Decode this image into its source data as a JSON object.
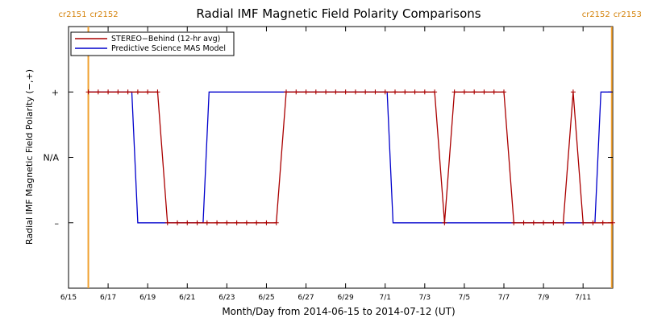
{
  "chart_data": {
    "type": "line",
    "title": "Radial IMF Magnetic Field Polarity Comparisons",
    "xlabel": "Month/Day from 2014-06-15 to 2014-07-12 (UT)",
    "ylabel": "Radial IMF Magnetic Field Polarity (−,+)",
    "x_range_days": [
      0,
      27.5
    ],
    "y_range": [
      -2,
      2
    ],
    "x_ticks": [
      {
        "day": 0,
        "label": "6/15"
      },
      {
        "day": 2,
        "label": "6/17"
      },
      {
        "day": 4,
        "label": "6/19"
      },
      {
        "day": 6,
        "label": "6/21"
      },
      {
        "day": 8,
        "label": "6/23"
      },
      {
        "day": 10,
        "label": "6/25"
      },
      {
        "day": 12,
        "label": "6/27"
      },
      {
        "day": 14,
        "label": "6/29"
      },
      {
        "day": 16,
        "label": "7/1"
      },
      {
        "day": 18,
        "label": "7/3"
      },
      {
        "day": 20,
        "label": "7/5"
      },
      {
        "day": 22,
        "label": "7/7"
      },
      {
        "day": 24,
        "label": "7/9"
      },
      {
        "day": 26,
        "label": "7/11"
      }
    ],
    "y_ticks": [
      {
        "value": 1,
        "label": "+"
      },
      {
        "value": 0,
        "label": "N/A"
      },
      {
        "value": -1,
        "label": "–"
      }
    ],
    "carrington_markers": [
      {
        "day": 1.0,
        "left_label": "cr2151",
        "right_label": "cr2152"
      },
      {
        "day": 27.45,
        "left_label": "cr2152",
        "right_label": "cr2153"
      }
    ],
    "series": [
      {
        "name": "STEREO−Behind (12-hr avg)",
        "color": "#aa0000",
        "markers": true,
        "x": [
          1.0,
          1.5,
          2.0,
          2.5,
          3.0,
          3.5,
          4.0,
          4.5,
          5.0,
          5.5,
          6.0,
          6.5,
          7.0,
          7.5,
          8.0,
          8.5,
          9.0,
          9.5,
          10.0,
          10.5,
          11.0,
          11.5,
          12.0,
          12.5,
          13.0,
          13.5,
          14.0,
          14.5,
          15.0,
          15.5,
          16.0,
          16.5,
          17.0,
          17.5,
          18.0,
          18.5,
          19.0,
          19.5,
          20.0,
          20.5,
          21.0,
          21.5,
          22.0,
          22.5,
          23.0,
          23.5,
          24.0,
          24.5,
          25.0,
          25.5,
          26.0,
          26.5,
          27.0,
          27.5
        ],
        "y": [
          1,
          1,
          1,
          1,
          1,
          1,
          1,
          1,
          -1,
          -1,
          -1,
          -1,
          -1,
          -1,
          -1,
          -1,
          -1,
          -1,
          -1,
          -1,
          1,
          1,
          1,
          1,
          1,
          1,
          1,
          1,
          1,
          1,
          1,
          1,
          1,
          1,
          1,
          1,
          -1,
          1,
          1,
          1,
          1,
          1,
          1,
          -1,
          -1,
          -1,
          -1,
          -1,
          -1,
          1,
          -1,
          -1,
          -1,
          -1
        ]
      },
      {
        "name": "Predictive Science MAS Model",
        "color": "#0000cc",
        "markers": false,
        "x": [
          1.0,
          3.2,
          3.5,
          6.8,
          7.1,
          16.1,
          16.4,
          26.6,
          26.9,
          27.45
        ],
        "y": [
          1,
          1,
          -1,
          -1,
          1,
          1,
          -1,
          -1,
          1,
          1
        ]
      }
    ],
    "legend": {
      "placement": "top-left"
    },
    "grid": false
  }
}
